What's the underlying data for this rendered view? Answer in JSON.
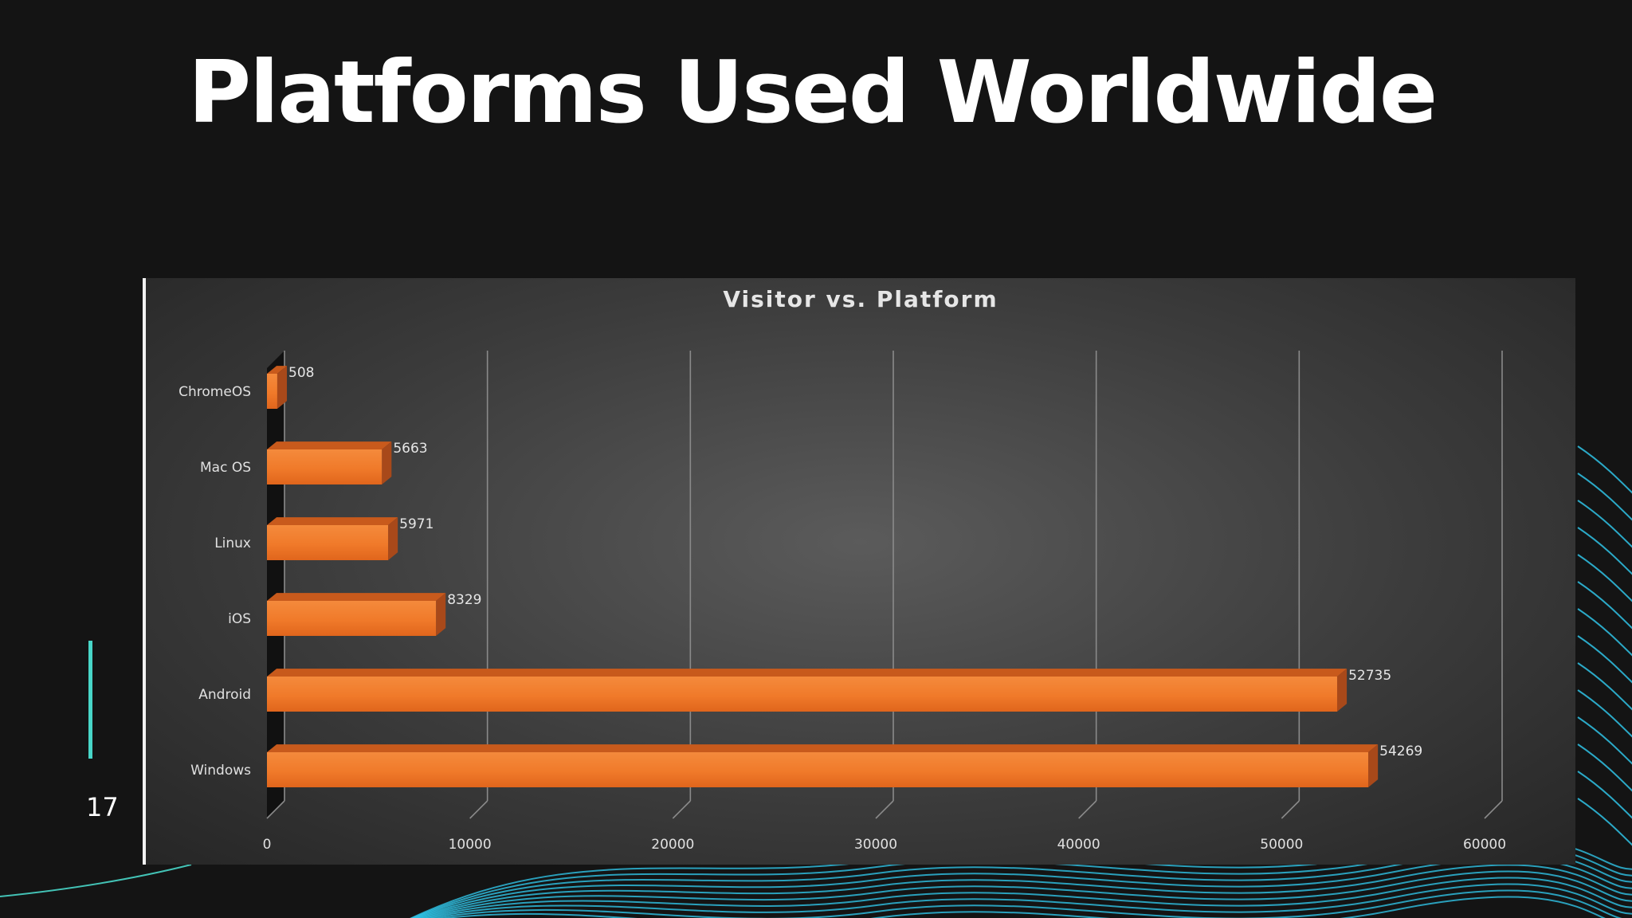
{
  "slide": {
    "title": "Platforms Used Worldwide",
    "page_number": "17"
  },
  "colors": {
    "background": "#141414",
    "accent": "#48d6c8",
    "wave": "#2fc3e6",
    "bar_front": "#f07a2a",
    "bar_top": "#c85a1c",
    "bar_side": "#a8491a"
  },
  "chart_data": {
    "type": "bar",
    "orientation": "horizontal",
    "style": "3d",
    "title": "Visitor vs. Platform",
    "categories": [
      "ChromeOS",
      "Mac OS",
      "Linux",
      "iOS",
      "Android",
      "Windows"
    ],
    "values": [
      508,
      5663,
      5971,
      8329,
      52735,
      54269
    ],
    "data_labels": [
      "508",
      "5663",
      "5971",
      "8329",
      "52735",
      "54269"
    ],
    "x_ticks": [
      0,
      10000,
      20000,
      30000,
      40000,
      50000,
      60000
    ],
    "x_tick_labels": [
      "0",
      "10000",
      "20000",
      "30000",
      "40000",
      "50000",
      "60000"
    ],
    "xlim": [
      0,
      60000
    ],
    "xlabel": "",
    "ylabel": "",
    "grid": true,
    "legend": "none"
  }
}
